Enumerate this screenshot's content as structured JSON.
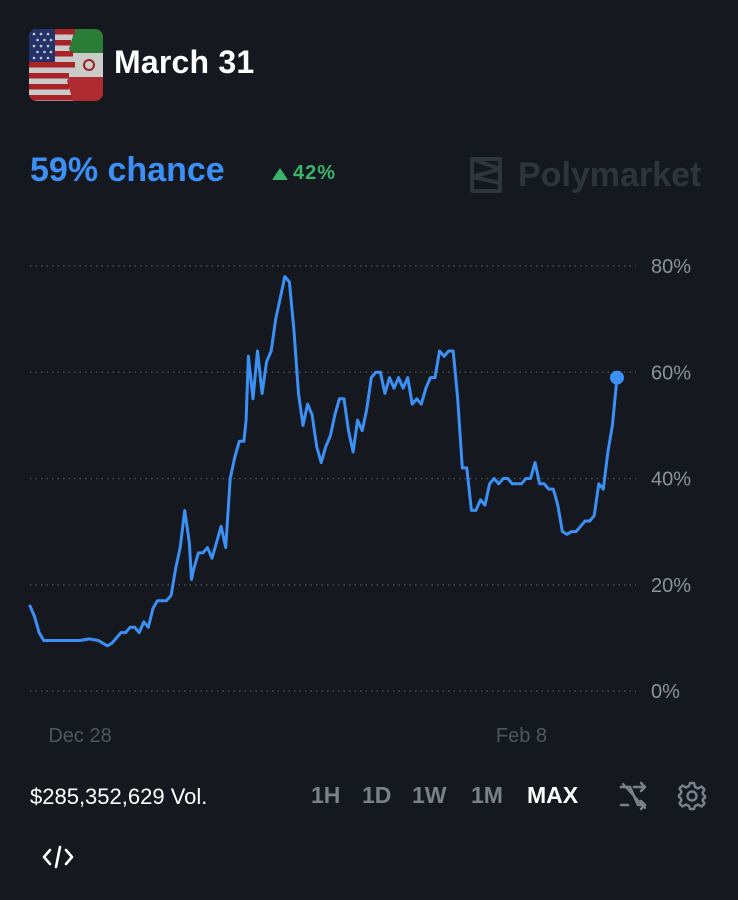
{
  "market": {
    "title": "March 31"
  },
  "summary": {
    "chance": "59% chance",
    "delta": "42%"
  },
  "brand": {
    "name": "Polymarket"
  },
  "footer": {
    "volume": "$285,352,629 Vol.",
    "ranges": [
      "1H",
      "1D",
      "1W",
      "1M",
      "MAX"
    ],
    "active_range": "MAX"
  },
  "icons": {
    "market": "us-iran-flags-icon",
    "brand": "polymarket-logo-icon",
    "up": "triangle-up-icon",
    "shuffle": "shuffle-icon",
    "settings": "gear-icon",
    "embed": "code-icon"
  },
  "colors": {
    "line": "#3c8ff4",
    "up": "#3ab468",
    "background": "#15191f"
  },
  "chart_data": {
    "type": "line",
    "series": [
      {
        "values": [
          [
            0,
            16
          ],
          [
            1,
            14
          ],
          [
            2,
            11
          ],
          [
            3,
            9.5
          ],
          [
            5,
            9.5
          ],
          [
            8,
            9.5
          ],
          [
            11,
            9.5
          ],
          [
            13,
            9.8
          ],
          [
            15,
            9.5
          ],
          [
            16,
            9
          ],
          [
            17,
            8.5
          ],
          [
            18,
            9
          ],
          [
            19,
            10
          ],
          [
            20,
            11
          ],
          [
            21,
            11
          ],
          [
            22,
            12
          ],
          [
            23,
            12
          ],
          [
            24,
            11
          ],
          [
            25,
            13
          ],
          [
            26,
            12
          ],
          [
            27,
            15.5
          ],
          [
            28,
            17
          ],
          [
            29,
            17
          ],
          [
            30,
            17
          ],
          [
            31,
            18
          ],
          [
            32,
            23
          ],
          [
            33,
            27
          ],
          [
            34,
            34
          ],
          [
            35,
            28
          ],
          [
            35.5,
            21
          ],
          [
            36,
            23
          ],
          [
            37,
            26
          ],
          [
            38,
            26
          ],
          [
            39,
            27
          ],
          [
            40,
            25
          ],
          [
            41,
            28
          ],
          [
            42,
            31
          ],
          [
            43,
            27
          ],
          [
            44,
            40
          ],
          [
            45,
            44
          ],
          [
            46,
            47
          ],
          [
            47,
            47
          ],
          [
            47.5,
            51
          ],
          [
            48,
            63
          ],
          [
            49,
            55
          ],
          [
            50,
            64
          ],
          [
            51,
            56
          ],
          [
            52,
            62
          ],
          [
            53,
            64
          ],
          [
            54,
            70
          ],
          [
            55,
            74
          ],
          [
            56,
            78
          ],
          [
            57,
            77
          ],
          [
            58,
            68
          ],
          [
            59,
            56
          ],
          [
            60,
            50
          ],
          [
            61,
            54
          ],
          [
            62,
            52
          ],
          [
            63,
            46
          ],
          [
            64,
            43
          ],
          [
            65,
            46
          ],
          [
            66,
            48
          ],
          [
            67,
            52
          ],
          [
            68,
            55
          ],
          [
            69,
            55
          ],
          [
            70,
            49
          ],
          [
            71,
            45
          ],
          [
            72,
            51
          ],
          [
            73,
            49
          ],
          [
            74,
            53
          ],
          [
            75,
            59
          ],
          [
            76,
            60
          ],
          [
            77,
            60
          ],
          [
            78,
            56
          ],
          [
            79,
            59
          ],
          [
            80,
            57
          ],
          [
            81,
            59
          ],
          [
            82,
            57
          ],
          [
            83,
            59
          ],
          [
            84,
            54
          ],
          [
            85,
            55
          ],
          [
            86,
            54
          ],
          [
            87,
            57
          ],
          [
            88,
            59
          ],
          [
            89,
            59
          ],
          [
            90,
            64
          ],
          [
            91,
            63
          ],
          [
            92,
            64
          ],
          [
            93,
            64
          ],
          [
            94,
            55
          ],
          [
            95,
            42
          ],
          [
            96,
            42
          ],
          [
            97,
            34
          ],
          [
            98,
            34
          ],
          [
            99,
            36
          ],
          [
            100,
            35
          ],
          [
            101,
            39
          ],
          [
            102,
            40
          ],
          [
            103,
            39
          ],
          [
            104,
            40
          ],
          [
            105,
            40
          ],
          [
            106,
            39
          ],
          [
            107,
            39
          ],
          [
            108,
            39
          ],
          [
            109,
            40
          ],
          [
            110,
            40
          ],
          [
            111,
            43
          ],
          [
            112,
            39
          ],
          [
            113,
            39
          ],
          [
            114,
            38
          ],
          [
            115,
            38
          ],
          [
            116,
            35
          ],
          [
            117,
            30
          ],
          [
            118,
            29.5
          ],
          [
            119,
            30
          ],
          [
            120,
            30
          ],
          [
            121,
            31
          ],
          [
            122,
            32
          ],
          [
            123,
            32
          ],
          [
            124,
            33
          ],
          [
            125,
            39
          ],
          [
            126,
            38
          ],
          [
            127,
            45
          ],
          [
            128,
            50
          ],
          [
            129,
            59
          ]
        ]
      }
    ],
    "x_ticks": [
      {
        "x": 11,
        "label": "Dec 28"
      },
      {
        "x": 108,
        "label": "Feb 8"
      }
    ],
    "y_ticks": [
      0,
      20,
      40,
      60,
      80
    ],
    "y_tick_labels": [
      "0%",
      "20%",
      "40%",
      "60%",
      "80%"
    ],
    "ylim": [
      0,
      80
    ],
    "xlim": [
      0,
      129
    ],
    "grid": true,
    "last_point_marker": true
  }
}
